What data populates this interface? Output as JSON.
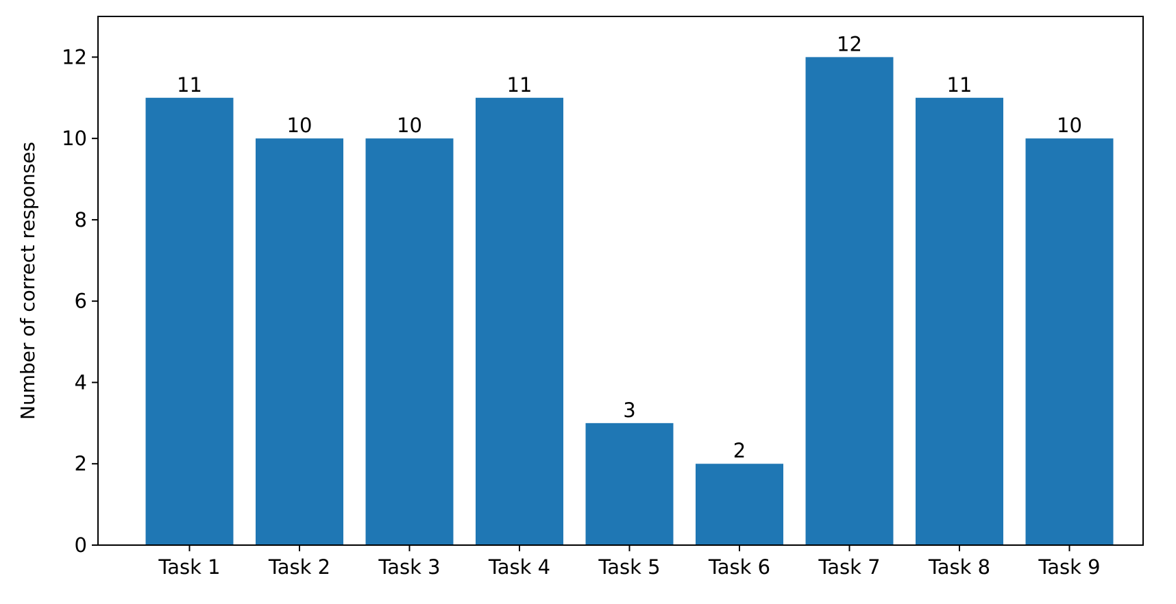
{
  "chart_data": {
    "type": "bar",
    "title": "",
    "xlabel": "",
    "ylabel": "Number of correct responses",
    "categories": [
      "Task 1",
      "Task 2",
      "Task 3",
      "Task 4",
      "Task 5",
      "Task 6",
      "Task 7",
      "Task 8",
      "Task 9"
    ],
    "values": [
      11,
      10,
      10,
      11,
      3,
      2,
      12,
      11,
      10
    ],
    "data_labels": [
      "11",
      "10",
      "10",
      "11",
      "3",
      "2",
      "12",
      "11",
      "10"
    ],
    "ylim": [
      0,
      13
    ],
    "yticks": [
      0,
      2,
      4,
      6,
      8,
      10,
      12
    ],
    "ytick_labels": [
      "0",
      "2",
      "4",
      "6",
      "8",
      "10",
      "12"
    ],
    "grid": false,
    "legend": "none",
    "colors": {
      "bar": "#1f77b4",
      "axis": "#000000",
      "background": "#ffffff"
    }
  }
}
